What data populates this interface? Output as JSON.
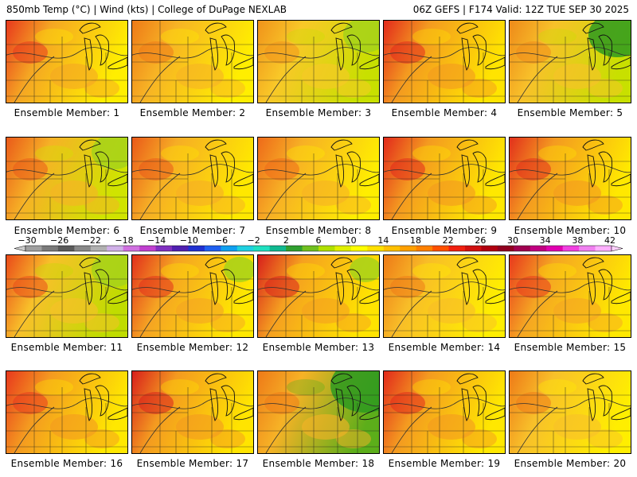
{
  "header": {
    "left": "850mb Temp (°C) | Wind (kts) | College of DuPage NEXLAB",
    "right": "06Z GEFS | F174 Valid: 12Z TUE SEP 30 2025"
  },
  "panels": [
    {
      "label": "Ensemble Member: 1",
      "base": "#f5a623",
      "warm": "#e8391d",
      "cool": "#ffee00",
      "green": 0
    },
    {
      "label": "Ensemble Member: 2",
      "base": "#f7b325",
      "warm": "#ee7a18",
      "cool": "#ffee00",
      "green": 0
    },
    {
      "label": "Ensemble Member: 3",
      "base": "#f9c828",
      "warm": "#f0931b",
      "cool": "#c8e000",
      "green": 2
    },
    {
      "label": "Ensemble Member: 4",
      "base": "#f49a20",
      "warm": "#e22a1c",
      "cool": "#ffe400",
      "green": 0
    },
    {
      "label": "Ensemble Member: 5",
      "base": "#f8c12a",
      "warm": "#ee8a1a",
      "cool": "#c8e000",
      "green": 3
    },
    {
      "label": "Ensemble Member: 6",
      "base": "#f6b226",
      "warm": "#ea5a1a",
      "cool": "#d0e400",
      "green": 2
    },
    {
      "label": "Ensemble Member: 7",
      "base": "#f6ad25",
      "warm": "#ea5a1a",
      "cool": "#ffe800",
      "green": 0
    },
    {
      "label": "Ensemble Member: 8",
      "base": "#f7b025",
      "warm": "#ee6a1a",
      "cool": "#ffee00",
      "green": 0
    },
    {
      "label": "Ensemble Member: 9",
      "base": "#f49a20",
      "warm": "#e22a1c",
      "cool": "#ffe800",
      "green": 0
    },
    {
      "label": "Ensemble Member: 10",
      "base": "#f49a20",
      "warm": "#e2301c",
      "cool": "#ffe800",
      "green": 0
    },
    {
      "label": "Ensemble Member: 11",
      "base": "#f8c02a",
      "warm": "#ea4a1a",
      "cool": "#c0dc00",
      "green": 2
    },
    {
      "label": "Ensemble Member: 12",
      "base": "#f5a323",
      "warm": "#e2301c",
      "cool": "#ffe800",
      "green": 1
    },
    {
      "label": "Ensemble Member: 13",
      "base": "#f5a020",
      "warm": "#d8201c",
      "cool": "#ffe400",
      "green": 1
    },
    {
      "label": "Ensemble Member: 14",
      "base": "#f8bd28",
      "warm": "#ee7a18",
      "cool": "#ffee00",
      "green": 0
    },
    {
      "label": "Ensemble Member: 15",
      "base": "#f5a523",
      "warm": "#e8391d",
      "cool": "#ffe800",
      "green": 0
    },
    {
      "label": "Ensemble Member: 16",
      "base": "#f49a20",
      "warm": "#e8391d",
      "cool": "#ffe800",
      "green": 0
    },
    {
      "label": "Ensemble Member: 17",
      "base": "#f49a20",
      "warm": "#d8201c",
      "cool": "#ffe400",
      "green": 0
    },
    {
      "label": "Ensemble Member: 18",
      "base": "#f6b226",
      "warm": "#ee7a18",
      "cool": "#5cae1a",
      "green": 4
    },
    {
      "label": "Ensemble Member: 19",
      "base": "#f49a20",
      "warm": "#e22a1c",
      "cool": "#ffe800",
      "green": 0
    },
    {
      "label": "Ensemble Member: 20",
      "base": "#f8c02a",
      "warm": "#ee7a18",
      "cool": "#ffee00",
      "green": 0
    }
  ],
  "colorbar": {
    "labels": [
      "−30",
      "−26",
      "−22",
      "−18",
      "−14",
      "−10",
      "−6",
      "−2",
      "2",
      "6",
      "10",
      "14",
      "18",
      "22",
      "26",
      "30",
      "34",
      "38",
      "42"
    ],
    "colors": [
      "#a0a0a0",
      "#7a7a7a",
      "#5a5a5a",
      "#888888",
      "#b0b0b0",
      "#d0b0e8",
      "#d070e0",
      "#c040d0",
      "#8030c0",
      "#5020b0",
      "#2030d0",
      "#2060f0",
      "#10a0f0",
      "#20d0e0",
      "#20e0c0",
      "#10b890",
      "#30a030",
      "#70c020",
      "#b0e000",
      "#e0f000",
      "#ffff00",
      "#ffe000",
      "#ffc000",
      "#ffa000",
      "#ff8000",
      "#ff5000",
      "#f02010",
      "#d01010",
      "#b00010",
      "#900020",
      "#a00050",
      "#c00080",
      "#e000b0",
      "#f040e0",
      "#f080f0",
      "#ffb0ff"
    ]
  }
}
